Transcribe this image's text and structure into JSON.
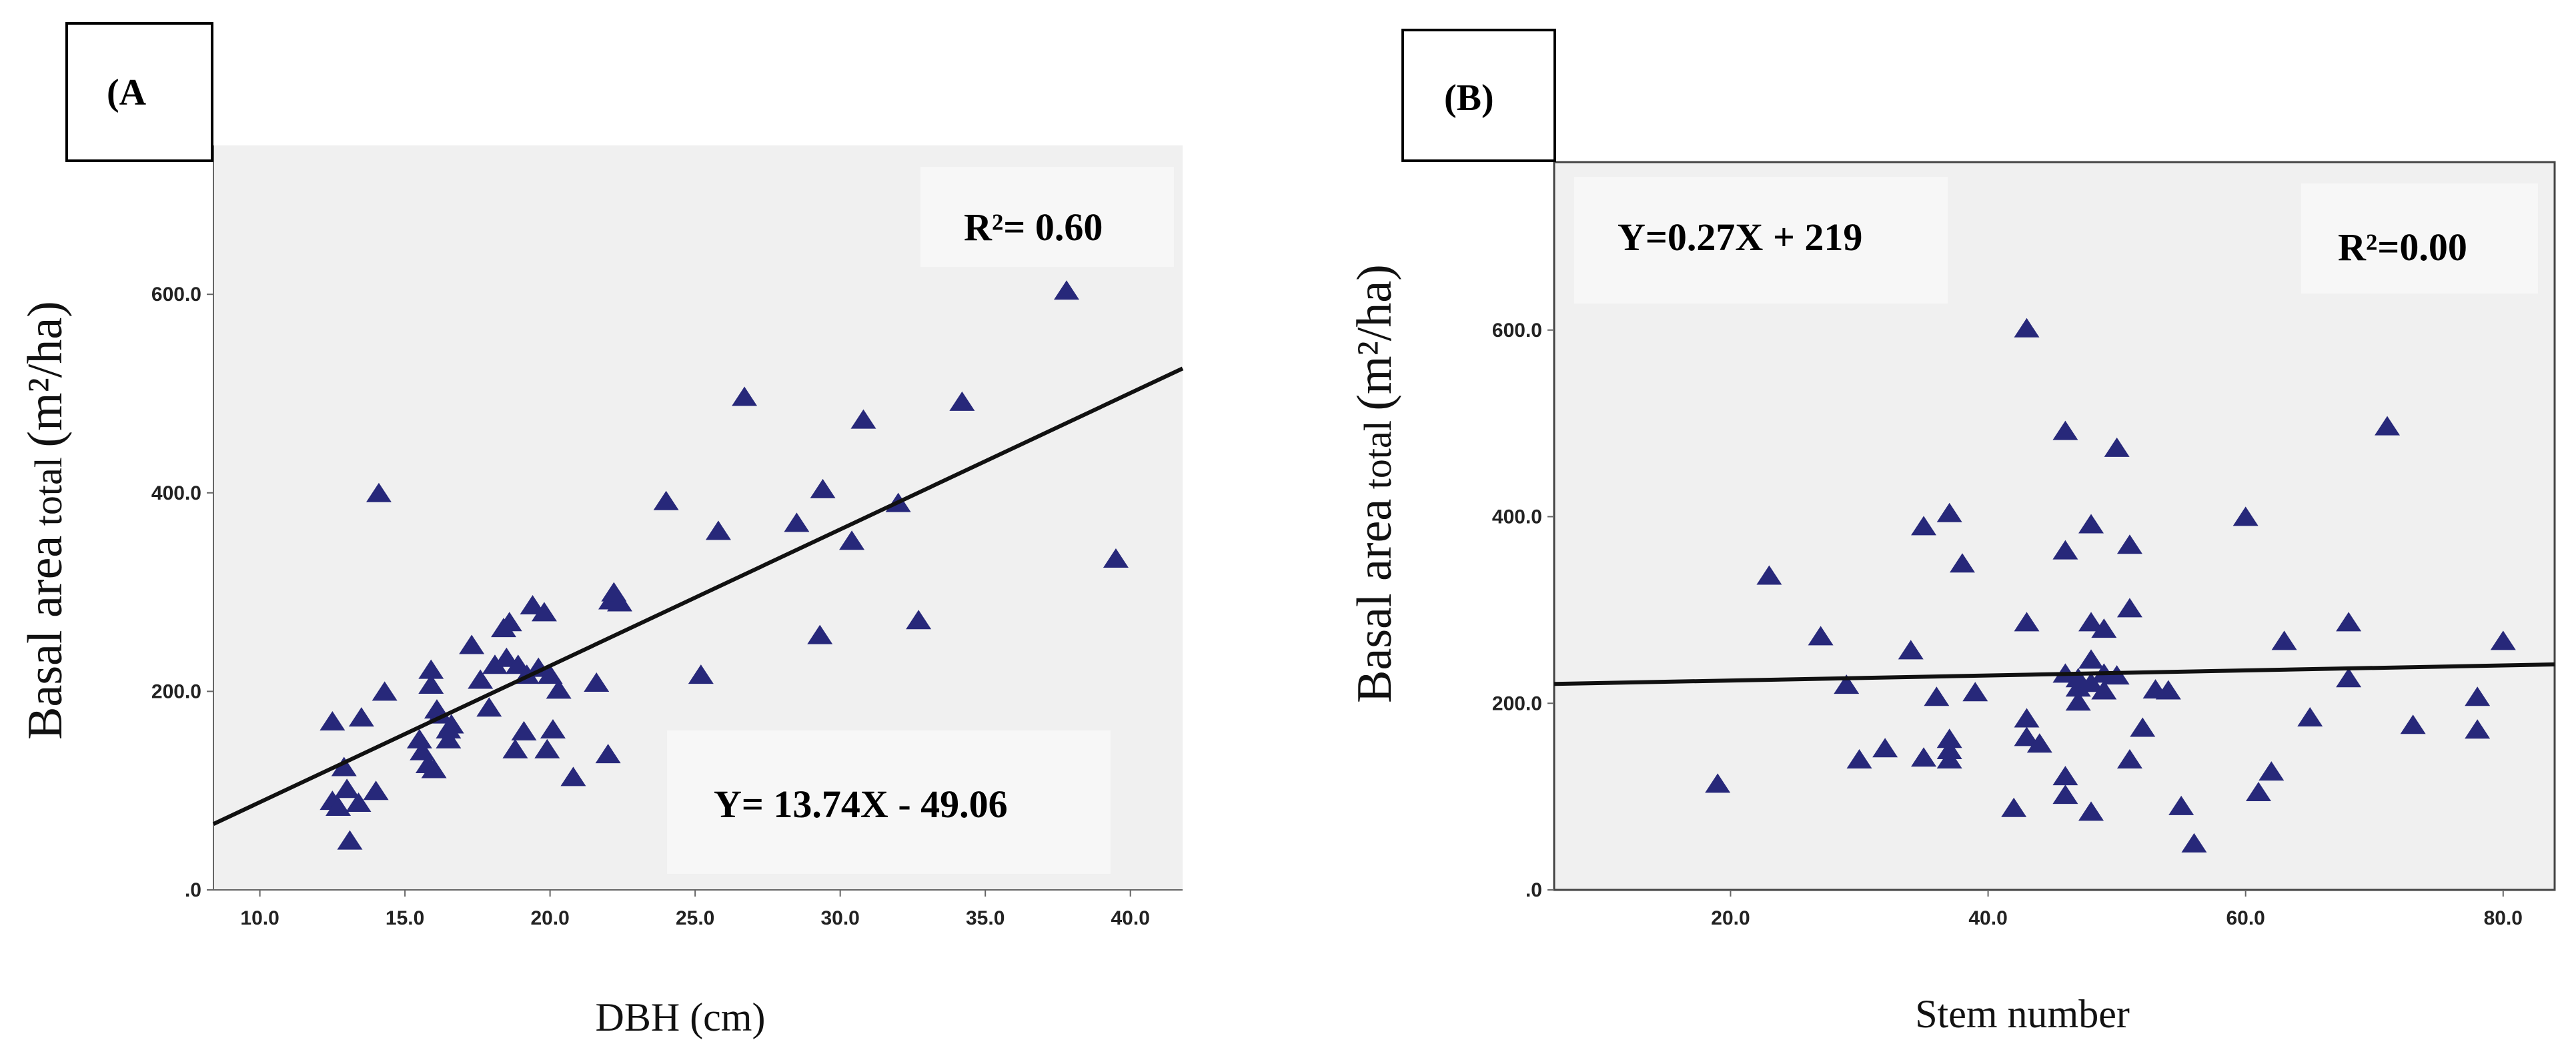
{
  "chart_data": [
    {
      "panel_label": "(A",
      "type": "scatter",
      "xlabel": "DBH (cm)",
      "ylabel": {
        "main": "Basal area",
        "sub": " total ",
        "unit": "(m²/ha)"
      },
      "xlim": [
        8.4,
        41.8
      ],
      "ylim": [
        0,
        750
      ],
      "xticks": [
        10,
        15,
        20,
        25,
        30,
        35,
        40
      ],
      "xtick_labels": [
        "10.0",
        "15.0",
        "20.0",
        "25.0",
        "30.0",
        "35.0",
        "40.0"
      ],
      "yticks": [
        0,
        200,
        400,
        600
      ],
      "ytick_labels": [
        ".0",
        "200.0",
        "400.0",
        "600.0"
      ],
      "r2_text": "R²= 0.60",
      "equation_text": "Y= 13.74X - 49.06",
      "fit": {
        "slope": 13.74,
        "intercept": -49.06
      },
      "marker": "triangle",
      "color": "#27287a",
      "points": [
        [
          12.5,
          168
        ],
        [
          12.5,
          88
        ],
        [
          12.7,
          82
        ],
        [
          12.9,
          122
        ],
        [
          13.0,
          100
        ],
        [
          13.1,
          48
        ],
        [
          13.4,
          86
        ],
        [
          13.5,
          172
        ],
        [
          14.0,
          98
        ],
        [
          14.1,
          398
        ],
        [
          14.3,
          198
        ],
        [
          15.5,
          150
        ],
        [
          15.6,
          138
        ],
        [
          15.8,
          125
        ],
        [
          15.9,
          220
        ],
        [
          15.9,
          205
        ],
        [
          16.0,
          120
        ],
        [
          16.1,
          180
        ],
        [
          16.2,
          175
        ],
        [
          16.5,
          160
        ],
        [
          16.5,
          150
        ],
        [
          16.6,
          165
        ],
        [
          17.3,
          245
        ],
        [
          17.6,
          210
        ],
        [
          17.9,
          182
        ],
        [
          18.1,
          225
        ],
        [
          18.4,
          262
        ],
        [
          18.5,
          232
        ],
        [
          18.6,
          268
        ],
        [
          18.8,
          140
        ],
        [
          18.9,
          225
        ],
        [
          19.1,
          158
        ],
        [
          19.2,
          215
        ],
        [
          19.4,
          285
        ],
        [
          19.6,
          222
        ],
        [
          19.8,
          278
        ],
        [
          19.9,
          140
        ],
        [
          20.0,
          215
        ],
        [
          20.1,
          160
        ],
        [
          20.3,
          200
        ],
        [
          20.8,
          112
        ],
        [
          21.6,
          207
        ],
        [
          22.0,
          135
        ],
        [
          22.1,
          290
        ],
        [
          22.2,
          298
        ],
        [
          22.4,
          288
        ],
        [
          24.0,
          390
        ],
        [
          25.2,
          215
        ],
        [
          25.8,
          360
        ],
        [
          26.7,
          495
        ],
        [
          28.5,
          368
        ],
        [
          29.3,
          255
        ],
        [
          29.4,
          402
        ],
        [
          30.4,
          350
        ],
        [
          30.8,
          472
        ],
        [
          32.0,
          388
        ],
        [
          32.7,
          270
        ],
        [
          34.2,
          490
        ],
        [
          37.8,
          602
        ],
        [
          39.5,
          332
        ]
      ]
    },
    {
      "panel_label": "(B)",
      "type": "scatter",
      "xlabel": "Stem number",
      "ylabel": {
        "main": "Basal area",
        "sub": " total ",
        "unit": "(m²/ha)"
      },
      "xlim": [
        6.3,
        84.0
      ],
      "ylim": [
        0,
        780
      ],
      "xticks": [
        20,
        40,
        60,
        80
      ],
      "xtick_labels": [
        "20.0",
        "40.0",
        "60.0",
        "80.0"
      ],
      "yticks": [
        0,
        200,
        400,
        600
      ],
      "ytick_labels": [
        ".0",
        "200.0",
        "400.0",
        "600.0"
      ],
      "r2_text": "R²=0.00",
      "equation_text": "Y=0.27X + 219",
      "fit": {
        "slope": 0.27,
        "intercept": 219
      },
      "marker": "triangle",
      "color": "#27287a",
      "points": [
        [
          19,
          112
        ],
        [
          23,
          335
        ],
        [
          27,
          270
        ],
        [
          29,
          218
        ],
        [
          30,
          138
        ],
        [
          32,
          150
        ],
        [
          34,
          255
        ],
        [
          35,
          140
        ],
        [
          35,
          388
        ],
        [
          36,
          205
        ],
        [
          37,
          138
        ],
        [
          37,
          148
        ],
        [
          37,
          160
        ],
        [
          37,
          402
        ],
        [
          38,
          348
        ],
        [
          39,
          210
        ],
        [
          42,
          86
        ],
        [
          43,
          600
        ],
        [
          43,
          285
        ],
        [
          43,
          182
        ],
        [
          43,
          162
        ],
        [
          44,
          155
        ],
        [
          46,
          490
        ],
        [
          46,
          362
        ],
        [
          46,
          230
        ],
        [
          46,
          120
        ],
        [
          46,
          100
        ],
        [
          47,
          215
        ],
        [
          47,
          200
        ],
        [
          47,
          225
        ],
        [
          48,
          390
        ],
        [
          48,
          285
        ],
        [
          48,
          245
        ],
        [
          48,
          82
        ],
        [
          48,
          220
        ],
        [
          49,
          278
        ],
        [
          49,
          212
        ],
        [
          49,
          230
        ],
        [
          50,
          472
        ],
        [
          50,
          228
        ],
        [
          51,
          368
        ],
        [
          51,
          300
        ],
        [
          51,
          138
        ],
        [
          52,
          172
        ],
        [
          53,
          213
        ],
        [
          54,
          212
        ],
        [
          55,
          88
        ],
        [
          56,
          48
        ],
        [
          60,
          398
        ],
        [
          61,
          103
        ],
        [
          62,
          125
        ],
        [
          63,
          265
        ],
        [
          65,
          183
        ],
        [
          68,
          285
        ],
        [
          68,
          225
        ],
        [
          71,
          495
        ],
        [
          73,
          175
        ],
        [
          78,
          205
        ],
        [
          78,
          170
        ],
        [
          80,
          265
        ]
      ]
    }
  ]
}
